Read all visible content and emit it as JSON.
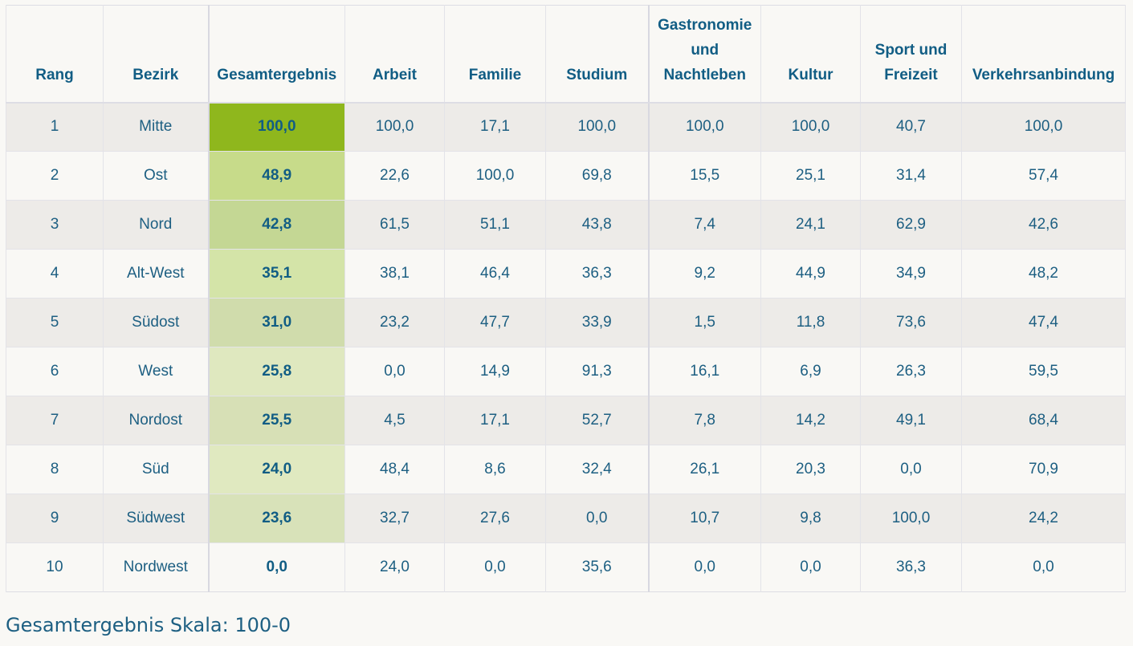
{
  "table": {
    "headers": [
      "Rang",
      "Bezirk",
      "Gesamtergebnis",
      "Arbeit",
      "Familie",
      "Studium",
      "Gastronomie und Nachtleben",
      "Kultur",
      "Sport und Freizeit",
      "Verkehrsanbindung"
    ],
    "rows": [
      [
        "1",
        "Mitte",
        "100,0",
        "100,0",
        "17,1",
        "100,0",
        "100,0",
        "100,0",
        "40,7",
        "100,0"
      ],
      [
        "2",
        "Ost",
        "48,9",
        "22,6",
        "100,0",
        "69,8",
        "15,5",
        "25,1",
        "31,4",
        "57,4"
      ],
      [
        "3",
        "Nord",
        "42,8",
        "61,5",
        "51,1",
        "43,8",
        "7,4",
        "24,1",
        "62,9",
        "42,6"
      ],
      [
        "4",
        "Alt-West",
        "35,1",
        "38,1",
        "46,4",
        "36,3",
        "9,2",
        "44,9",
        "34,9",
        "48,2"
      ],
      [
        "5",
        "Südost",
        "31,0",
        "23,2",
        "47,7",
        "33,9",
        "1,5",
        "11,8",
        "73,6",
        "47,4"
      ],
      [
        "6",
        "West",
        "25,8",
        "0,0",
        "14,9",
        "91,3",
        "16,1",
        "6,9",
        "26,3",
        "59,5"
      ],
      [
        "7",
        "Nordost",
        "25,5",
        "4,5",
        "17,1",
        "52,7",
        "7,8",
        "14,2",
        "49,1",
        "68,4"
      ],
      [
        "8",
        "Süd",
        "24,0",
        "48,4",
        "8,6",
        "32,4",
        "26,1",
        "20,3",
        "0,0",
        "70,9"
      ],
      [
        "9",
        "Südwest",
        "23,6",
        "32,7",
        "27,6",
        "0,0",
        "10,7",
        "9,8",
        "100,0",
        "24,2"
      ],
      [
        "10",
        "Nordwest",
        "0,0",
        "24,0",
        "0,0",
        "35,6",
        "0,0",
        "0,0",
        "36,3",
        "0,0"
      ]
    ],
    "score_colors": [
      "#8fb71d",
      "#c7db8a",
      "#c4d794",
      "#d4e4a8",
      "#d0dcac",
      "#dfe8bf",
      "#d7e0b6",
      "#e0e9c0",
      "#d8e2b9",
      "#f9f8f5"
    ]
  },
  "footer_note": "Gesamtergebnis Skala: 100-0"
}
